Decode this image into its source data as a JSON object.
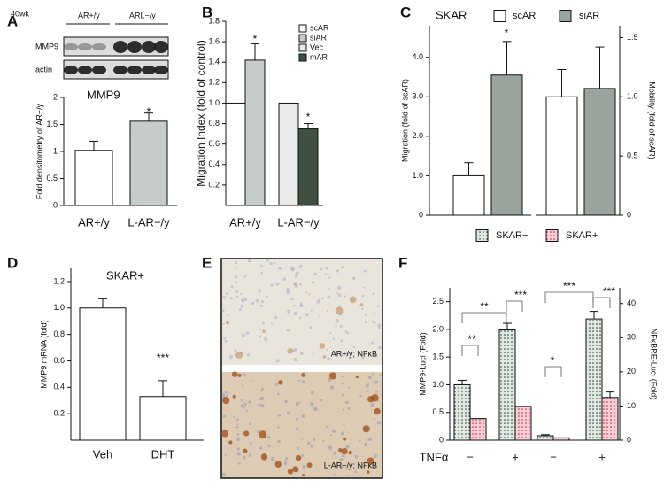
{
  "chart_data": [
    {
      "panel": "A",
      "type": "bar",
      "blot": {
        "age": "40wk",
        "genotypes": [
          "AR+/y",
          "ARL−/y"
        ],
        "rows": [
          "MMP9",
          "actin"
        ]
      },
      "title": "MMP9",
      "ylabel": "Fold  densitometry of AR+/y",
      "categories": [
        "AR+/y",
        "L-AR−/y"
      ],
      "series": [
        {
          "colors": [
            "#ffffff",
            "#c6ccc8"
          ],
          "values": [
            1.02,
            1.56
          ],
          "errors": [
            0.17,
            0.15
          ]
        }
      ],
      "ylim": [
        0,
        2
      ],
      "yticks": [
        0,
        0.5,
        1,
        1.5,
        2
      ],
      "annotations": [
        "*"
      ]
    },
    {
      "panel": "B",
      "type": "bar",
      "ylabel": "Migration Index (fold of control)",
      "categories": [
        "AR+/y",
        "L-AR−/y"
      ],
      "series": [
        {
          "name": "scAR",
          "color": "#ffffff",
          "values": [
            1.0,
            null
          ]
        },
        {
          "name": "siAR",
          "color": "#c6ccc8",
          "values": [
            1.42,
            null
          ],
          "errors": [
            0.16,
            null
          ]
        },
        {
          "name": "Vec",
          "color": "#e8eae8",
          "values": [
            null,
            1.0
          ]
        },
        {
          "name": "mAR",
          "color": "#3f5043",
          "values": [
            null,
            0.75
          ],
          "errors": [
            null,
            0.05
          ]
        }
      ],
      "ylim": [
        0,
        1.8
      ],
      "yticks": [
        0.2,
        0.4,
        0.6,
        0.8,
        {
          "value": 1,
          "label": "1.0"
        },
        1.2,
        1.4,
        1.6,
        1.8
      ],
      "annotations": [
        "*",
        "*"
      ]
    },
    {
      "panel": "C",
      "type": "bar",
      "title": "SKAR",
      "ylabel": "Migration (fold of scAR)",
      "y2label": "Mobility (fold of scAR)",
      "category_axes": [
        "y",
        "y2"
      ],
      "series": [
        {
          "name": "scAR",
          "color": "#ffffff",
          "values": [
            1.0,
            1.0
          ],
          "errors": [
            0.33,
            0.23
          ]
        },
        {
          "name": "siAR",
          "color": "#9aa49d",
          "values": [
            3.55,
            1.07
          ],
          "errors": [
            0.85,
            0.35
          ]
        }
      ],
      "ylim": [
        0,
        4.8
      ],
      "yticks": [
        0,
        {
          "value": 1,
          "label": "1.0"
        },
        {
          "value": 2,
          "label": "2.0"
        },
        {
          "value": 3,
          "label": "3.0"
        },
        {
          "value": 4,
          "label": "4.0"
        }
      ],
      "y2lim": [
        0,
        1.6
      ],
      "y2ticks": [
        0,
        0.5,
        {
          "value": 1,
          "label": "1.0"
        },
        1.5
      ],
      "annotations": [
        "*"
      ]
    },
    {
      "panel": "D",
      "type": "bar",
      "title": "SKAR+",
      "ylabel": "MMP9 mRNA (fold)",
      "categories": [
        "Veh",
        "DHT"
      ],
      "series": [
        {
          "color": "#ffffff",
          "values": [
            1.0,
            0.33
          ],
          "errors": [
            0.07,
            0.12
          ]
        }
      ],
      "ylim": [
        0,
        1.3
      ],
      "yticks": [
        0.2,
        0.4,
        0.6,
        0.8,
        {
          "value": 1,
          "label": "1.0"
        },
        1.2
      ],
      "annotations": [
        "***"
      ]
    },
    {
      "panel": "E",
      "type": "image",
      "labels": [
        "AR+/y; NFκB",
        "L-AR−/y; NFκB"
      ]
    },
    {
      "panel": "F",
      "type": "bar",
      "ylabel": "MMP9-Luci (Fold)",
      "y2label": "NFκBRE-Luci (Fold)",
      "xlabel": "TNFα",
      "categories": [
        "−",
        "+",
        "−",
        "+"
      ],
      "category_axes": [
        "y",
        "y",
        "y2",
        "y2"
      ],
      "series": [
        {
          "name": "SKAR−",
          "color": "#dfe9e2",
          "values": [
            1.0,
            1.99,
            1.3,
            35.5
          ],
          "errors": [
            0.08,
            0.12,
            0.3,
            2.2
          ]
        },
        {
          "name": "SKAR+",
          "color": "#f7cdd6",
          "values": [
            0.39,
            0.61,
            0.7,
            12.5
          ],
          "errors": [
            null,
            null,
            null,
            1.6
          ]
        }
      ],
      "ylim": [
        0,
        2.75
      ],
      "yticks": [
        0,
        0.5,
        {
          "value": 1,
          "label": "1.0"
        },
        1.5,
        {
          "value": 2,
          "label": "2.0"
        },
        2.5
      ],
      "y2lim": [
        0,
        44.6
      ],
      "y2ticks": [
        0,
        10,
        20,
        30,
        40
      ],
      "pattern": "dots",
      "annotations": [
        "**",
        "**",
        "***",
        "*",
        "***",
        "***"
      ]
    }
  ]
}
